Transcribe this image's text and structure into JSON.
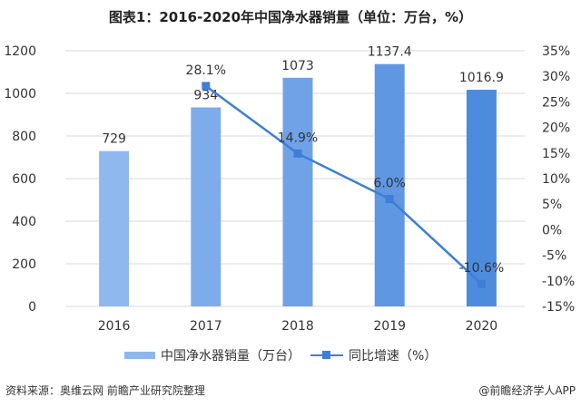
{
  "title": "图表1：2016-2020年中国净水器销量（单位：万台，%）",
  "legend": {
    "bar_label": "中国净水器销量（万台）",
    "line_label": "同比增速（%）"
  },
  "footer": {
    "source": "资料来源：奥维云网 前瞻产业研究院整理",
    "credit": "@前瞻经济学人APP"
  },
  "colors": {
    "bars": [
      "#8fb8ef",
      "#7eacea",
      "#6fa2e6",
      "#5f97e2",
      "#4d8bdc"
    ],
    "line": "#3d7fd6",
    "grid": "#d9d9d9"
  },
  "chart_data": {
    "type": "bar",
    "title": "图表1：2016-2020年中国净水器销量（单位：万台，%）",
    "categories": [
      "2016",
      "2017",
      "2018",
      "2019",
      "2020"
    ],
    "series": [
      {
        "name": "中国净水器销量（万台）",
        "type": "bar",
        "axis": "left",
        "values": [
          729,
          934,
          1073,
          1137.4,
          1016.9
        ],
        "labels": [
          "729",
          "934",
          "1073",
          "1137.4",
          "1016.9"
        ]
      },
      {
        "name": "同比增速（%）",
        "type": "line",
        "axis": "right",
        "values": [
          null,
          28.1,
          14.9,
          6.0,
          -10.6
        ],
        "labels": [
          "",
          "28.1%",
          "14.9%",
          "6.0%",
          "-10.6%"
        ]
      }
    ],
    "left_axis": {
      "ylim": [
        0,
        1200
      ],
      "ticks": [
        "0",
        "200",
        "400",
        "600",
        "800",
        "1000",
        "1200"
      ]
    },
    "right_axis": {
      "ylim": [
        -15,
        35
      ],
      "ticks": [
        "-15%",
        "-10%",
        "-5%",
        "0%",
        "5%",
        "10%",
        "15%",
        "20%",
        "25%",
        "30%",
        "35%"
      ]
    },
    "grid": true,
    "legend_position": "bottom",
    "xlabel": "",
    "ylabel": ""
  }
}
